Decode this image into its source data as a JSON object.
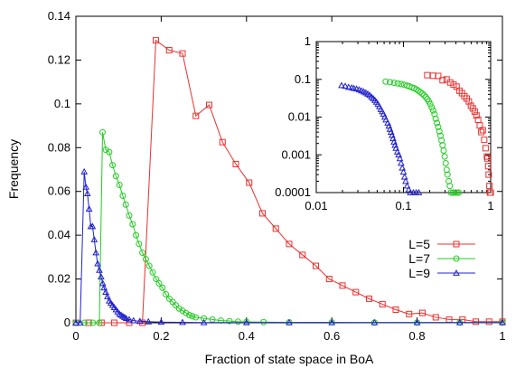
{
  "chart_data": [
    {
      "panel": "main",
      "type": "line",
      "xlabel": "Fraction of state space in BoA",
      "ylabel": "Frequency",
      "xlim": [
        0,
        1
      ],
      "ylim": [
        0,
        0.14
      ],
      "xticks": [
        "0",
        "0.2",
        "0.4",
        "0.6",
        "0.8",
        "1"
      ],
      "yticks": [
        "0",
        "0.02",
        "0.04",
        "0.06",
        "0.08",
        "0.1",
        "0.12",
        "0.14"
      ],
      "grid": false,
      "legend_position": "lower-right",
      "series": [
        {
          "name": "L=5",
          "color": "#e8312f",
          "marker": "square",
          "points": [
            [
              0.0,
              0.0
            ],
            [
              0.03,
              0.0
            ],
            [
              0.06,
              0.0
            ],
            [
              0.09,
              0.0
            ],
            [
              0.125,
              0.0
            ],
            [
              0.156,
              0.0
            ],
            [
              0.1875,
              0.129
            ],
            [
              0.21875,
              0.1245
            ],
            [
              0.25,
              0.123
            ],
            [
              0.28125,
              0.0945
            ],
            [
              0.3125,
              0.0995
            ],
            [
              0.34375,
              0.0825
            ],
            [
              0.375,
              0.0725
            ],
            [
              0.40625,
              0.064
            ],
            [
              0.4375,
              0.05
            ],
            [
              0.46875,
              0.043
            ],
            [
              0.5,
              0.036
            ],
            [
              0.53125,
              0.031
            ],
            [
              0.5625,
              0.026
            ],
            [
              0.59375,
              0.02
            ],
            [
              0.625,
              0.017
            ],
            [
              0.65625,
              0.014
            ],
            [
              0.6875,
              0.011
            ],
            [
              0.71875,
              0.0085
            ],
            [
              0.75,
              0.006
            ],
            [
              0.78125,
              0.004
            ],
            [
              0.8125,
              0.0045
            ],
            [
              0.84375,
              0.0025
            ],
            [
              0.875,
              0.0015
            ],
            [
              0.90625,
              0.0015
            ],
            [
              0.9375,
              0.0005
            ],
            [
              0.96875,
              0.0005
            ],
            [
              1.0,
              0.0005
            ]
          ]
        },
        {
          "name": "L=7",
          "color": "#22cc22",
          "marker": "circle",
          "points": [
            [
              0.0,
              0.0
            ],
            [
              0.02,
              0.0
            ],
            [
              0.04,
              0.0
            ],
            [
              0.055,
              0.0
            ],
            [
              0.0625,
              0.087
            ],
            [
              0.07,
              0.079
            ],
            [
              0.078,
              0.078
            ],
            [
              0.086,
              0.072
            ],
            [
              0.094,
              0.067
            ],
            [
              0.102,
              0.063
            ],
            [
              0.11,
              0.058
            ],
            [
              0.117,
              0.054
            ],
            [
              0.125,
              0.049
            ],
            [
              0.133,
              0.045
            ],
            [
              0.141,
              0.04
            ],
            [
              0.148,
              0.036
            ],
            [
              0.156,
              0.032
            ],
            [
              0.164,
              0.029
            ],
            [
              0.172,
              0.026
            ],
            [
              0.18,
              0.023
            ],
            [
              0.188,
              0.02
            ],
            [
              0.195,
              0.018
            ],
            [
              0.203,
              0.016
            ],
            [
              0.211,
              0.013
            ],
            [
              0.219,
              0.011
            ],
            [
              0.227,
              0.0095
            ],
            [
              0.234,
              0.008
            ],
            [
              0.242,
              0.0065
            ],
            [
              0.25,
              0.0055
            ],
            [
              0.258,
              0.0045
            ],
            [
              0.266,
              0.0035
            ],
            [
              0.273,
              0.003
            ],
            [
              0.281,
              0.0025
            ],
            [
              0.3,
              0.002
            ],
            [
              0.32,
              0.0015
            ],
            [
              0.34,
              0.001
            ],
            [
              0.36,
              0.0008
            ],
            [
              0.38,
              0.0005
            ],
            [
              0.4,
              0.0004
            ],
            [
              0.44,
              0.0003
            ],
            [
              0.5,
              0.0002
            ],
            [
              0.6,
              0.0002
            ],
            [
              0.7,
              0.0001
            ],
            [
              0.8,
              0.0001
            ],
            [
              0.9,
              0.0001
            ],
            [
              1.0,
              0.0001
            ]
          ]
        },
        {
          "name": "L=9",
          "color": "#2222cc",
          "marker": "triangle",
          "points": [
            [
              0.0,
              0.0
            ],
            [
              0.01,
              0.0
            ],
            [
              0.0195,
              0.069
            ],
            [
              0.0235,
              0.062
            ],
            [
              0.027,
              0.059
            ],
            [
              0.031,
              0.052
            ],
            [
              0.035,
              0.044
            ],
            [
              0.039,
              0.044
            ],
            [
              0.043,
              0.038
            ],
            [
              0.047,
              0.032
            ],
            [
              0.051,
              0.027
            ],
            [
              0.055,
              0.024
            ],
            [
              0.059,
              0.021
            ],
            [
              0.063,
              0.018
            ],
            [
              0.066,
              0.016
            ],
            [
              0.07,
              0.014
            ],
            [
              0.074,
              0.012
            ],
            [
              0.078,
              0.01
            ],
            [
              0.082,
              0.009
            ],
            [
              0.086,
              0.008
            ],
            [
              0.09,
              0.007
            ],
            [
              0.094,
              0.006
            ],
            [
              0.098,
              0.005
            ],
            [
              0.102,
              0.004
            ],
            [
              0.106,
              0.0035
            ],
            [
              0.11,
              0.003
            ],
            [
              0.114,
              0.0025
            ],
            [
              0.118,
              0.002
            ],
            [
              0.125,
              0.0015
            ],
            [
              0.135,
              0.001
            ],
            [
              0.15,
              0.0007
            ],
            [
              0.17,
              0.0005
            ],
            [
              0.2,
              0.0003
            ],
            [
              0.25,
              0.0002
            ],
            [
              0.3,
              0.0001
            ],
            [
              0.4,
              0.0001
            ],
            [
              0.5,
              0.0001
            ],
            [
              0.6,
              0.0001
            ],
            [
              0.7,
              0.0001
            ],
            [
              0.8,
              0.0001
            ],
            [
              0.9,
              0.0001
            ],
            [
              1.0,
              0.0001
            ]
          ]
        }
      ]
    },
    {
      "panel": "inset",
      "type": "scatter",
      "xscale": "log",
      "yscale": "log",
      "xlim": [
        0.01,
        1
      ],
      "ylim": [
        0.0001,
        1
      ],
      "xticks": [
        "0.01",
        "0.1",
        "1"
      ],
      "yticks": [
        "0.0001",
        "0.001",
        "0.01",
        "0.1",
        "1"
      ],
      "series": [
        {
          "name": "L=5",
          "color": "#e8312f",
          "marker": "square",
          "points": [
            [
              0.1875,
              0.129
            ],
            [
              0.21875,
              0.1245
            ],
            [
              0.25,
              0.123
            ],
            [
              0.28125,
              0.0945
            ],
            [
              0.3125,
              0.0995
            ],
            [
              0.34375,
              0.0825
            ],
            [
              0.375,
              0.0725
            ],
            [
              0.40625,
              0.064
            ],
            [
              0.4375,
              0.05
            ],
            [
              0.46875,
              0.043
            ],
            [
              0.5,
              0.036
            ],
            [
              0.53125,
              0.031
            ],
            [
              0.5625,
              0.026
            ],
            [
              0.59375,
              0.02
            ],
            [
              0.625,
              0.017
            ],
            [
              0.65625,
              0.014
            ],
            [
              0.6875,
              0.011
            ],
            [
              0.71875,
              0.0085
            ],
            [
              0.75,
              0.006
            ],
            [
              0.78125,
              0.004
            ],
            [
              0.8125,
              0.0045
            ],
            [
              0.84375,
              0.0025
            ],
            [
              0.875,
              0.0015
            ],
            [
              0.90625,
              0.0009
            ],
            [
              0.92,
              0.0008
            ],
            [
              0.9375,
              0.0005
            ],
            [
              0.95,
              0.0003
            ],
            [
              0.96875,
              0.00015
            ],
            [
              0.98,
              0.0001
            ],
            [
              1.0,
              0.0001
            ]
          ]
        },
        {
          "name": "L=7",
          "color": "#22cc22",
          "marker": "circle",
          "points": [
            [
              0.0625,
              0.087
            ],
            [
              0.07,
              0.084
            ],
            [
              0.078,
              0.081
            ],
            [
              0.086,
              0.078
            ],
            [
              0.094,
              0.075
            ],
            [
              0.102,
              0.072
            ],
            [
              0.11,
              0.068
            ],
            [
              0.117,
              0.065
            ],
            [
              0.125,
              0.061
            ],
            [
              0.133,
              0.058
            ],
            [
              0.141,
              0.054
            ],
            [
              0.148,
              0.05
            ],
            [
              0.156,
              0.046
            ],
            [
              0.164,
              0.042
            ],
            [
              0.172,
              0.038
            ],
            [
              0.18,
              0.034
            ],
            [
              0.188,
              0.03
            ],
            [
              0.195,
              0.026
            ],
            [
              0.203,
              0.022
            ],
            [
              0.211,
              0.018
            ],
            [
              0.219,
              0.015
            ],
            [
              0.227,
              0.012
            ],
            [
              0.234,
              0.009
            ],
            [
              0.242,
              0.007
            ],
            [
              0.25,
              0.0055
            ],
            [
              0.258,
              0.0042
            ],
            [
              0.266,
              0.0032
            ],
            [
              0.273,
              0.0024
            ],
            [
              0.281,
              0.0018
            ],
            [
              0.289,
              0.0013
            ],
            [
              0.297,
              0.0009
            ],
            [
              0.305,
              0.0006
            ],
            [
              0.313,
              0.0004
            ],
            [
              0.32,
              0.0003
            ],
            [
              0.33,
              0.0002
            ],
            [
              0.34,
              0.00015
            ],
            [
              0.35,
              0.0001
            ],
            [
              0.37,
              0.0001
            ],
            [
              0.39,
              0.0001
            ],
            [
              0.41,
              0.0001
            ],
            [
              0.43,
              0.0001
            ]
          ]
        },
        {
          "name": "L=9",
          "color": "#2222cc",
          "marker": "triangle",
          "points": [
            [
              0.0195,
              0.069
            ],
            [
              0.0215,
              0.066
            ],
            [
              0.0235,
              0.062
            ],
            [
              0.0255,
              0.06
            ],
            [
              0.027,
              0.058
            ],
            [
              0.029,
              0.056
            ],
            [
              0.031,
              0.053
            ],
            [
              0.033,
              0.05
            ],
            [
              0.035,
              0.047
            ],
            [
              0.037,
              0.044
            ],
            [
              0.039,
              0.041
            ],
            [
              0.041,
              0.038
            ],
            [
              0.043,
              0.034
            ],
            [
              0.045,
              0.031
            ],
            [
              0.047,
              0.028
            ],
            [
              0.049,
              0.025
            ],
            [
              0.051,
              0.022
            ],
            [
              0.053,
              0.019
            ],
            [
              0.055,
              0.016
            ],
            [
              0.057,
              0.014
            ],
            [
              0.059,
              0.012
            ],
            [
              0.061,
              0.01
            ],
            [
              0.063,
              0.0085
            ],
            [
              0.066,
              0.007
            ],
            [
              0.068,
              0.0058
            ],
            [
              0.07,
              0.0048
            ],
            [
              0.072,
              0.004
            ],
            [
              0.074,
              0.0033
            ],
            [
              0.076,
              0.0027
            ],
            [
              0.078,
              0.0022
            ],
            [
              0.08,
              0.0018
            ],
            [
              0.082,
              0.0015
            ],
            [
              0.085,
              0.0012
            ],
            [
              0.088,
              0.001
            ],
            [
              0.091,
              0.0008
            ],
            [
              0.094,
              0.0006
            ],
            [
              0.097,
              0.00045
            ],
            [
              0.1,
              0.00035
            ],
            [
              0.103,
              0.00026
            ],
            [
              0.106,
              0.0002
            ],
            [
              0.11,
              0.00015
            ],
            [
              0.115,
              0.00012
            ],
            [
              0.12,
              0.0001
            ],
            [
              0.13,
              0.0001
            ],
            [
              0.14,
              0.0001
            ],
            [
              0.15,
              0.0001
            ]
          ]
        }
      ]
    }
  ]
}
